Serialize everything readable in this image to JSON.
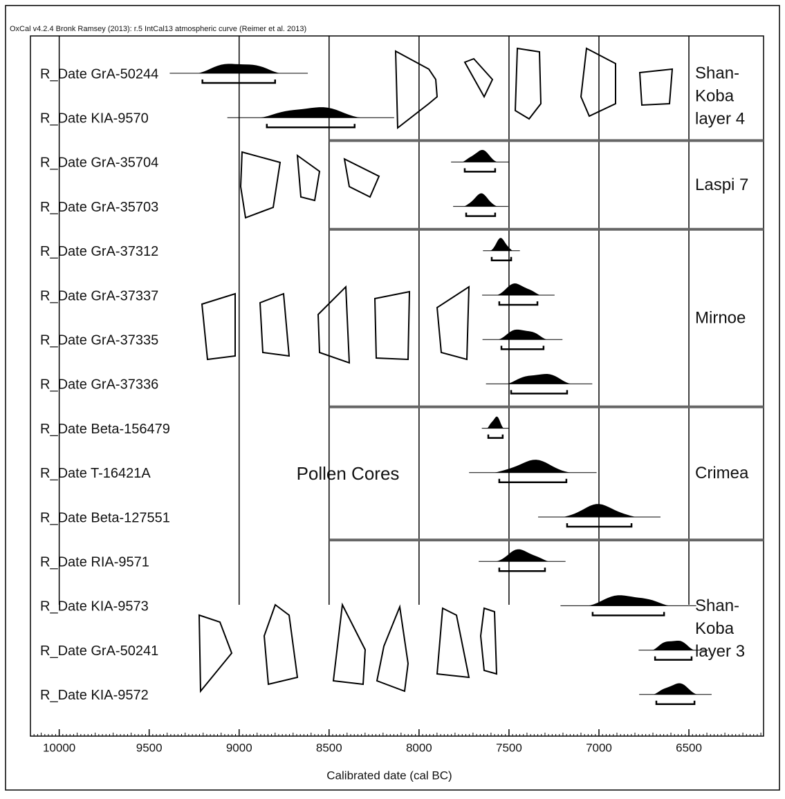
{
  "chart_data": {
    "type": "oxcal",
    "title": "OxCal v4.2.4 Bronk Ramsey (2013): r.5 IntCal13 atmospheric curve (Reimer et al. 2013)",
    "x_label": "Calibrated date (cal BC)",
    "annotation": "Pollen Cores",
    "xlim": [
      10160,
      6085
    ],
    "xticks": [
      10000,
      9500,
      9000,
      8500,
      8000,
      7500,
      7000,
      6500
    ],
    "categories": [
      "R_Date GrA-50244",
      "R_Date KIA-9570",
      "R_Date GrA-35704",
      "R_Date GrA-35703",
      "R_Date GrA-37312",
      "R_Date GrA-37337",
      "R_Date GrA-37335",
      "R_Date GrA-37336",
      "R_Date Beta-156479",
      "R_Date T-16421A",
      "R_Date Beta-127551",
      "R_Date RIA-9571",
      "R_Date KIA-9573",
      "R_Date GrA-50241",
      "R_Date KIA-9572"
    ],
    "ranges": [
      [
        9204,
        8800
      ],
      [
        8846,
        8358
      ],
      [
        7746,
        7577
      ],
      [
        7738,
        7577
      ],
      [
        7596,
        7488
      ],
      [
        7554,
        7342
      ],
      [
        7542,
        7308
      ],
      [
        7488,
        7177
      ],
      [
        7615,
        7535
      ],
      [
        7554,
        7181
      ],
      [
        7177,
        6819
      ],
      [
        7554,
        7300
      ],
      [
        7035,
        6638
      ],
      [
        6688,
        6485
      ],
      [
        6681,
        6469
      ]
    ],
    "color": "#000000",
    "groups": [
      {
        "lines": [
          "Shan-",
          "Koba",
          "layer 4"
        ],
        "rows": [
          0,
          1
        ]
      },
      {
        "lines": [
          "Laspi 7"
        ],
        "rows": [
          2,
          3
        ]
      },
      {
        "lines": [
          "Mirnoe"
        ],
        "rows": [
          4,
          7
        ]
      },
      {
        "lines": [
          "Crimea"
        ],
        "rows": [
          8,
          10
        ]
      },
      {
        "lines": [
          "Shan-",
          "Koba",
          "layer 3"
        ],
        "rows": [
          11,
          14
        ]
      }
    ]
  }
}
